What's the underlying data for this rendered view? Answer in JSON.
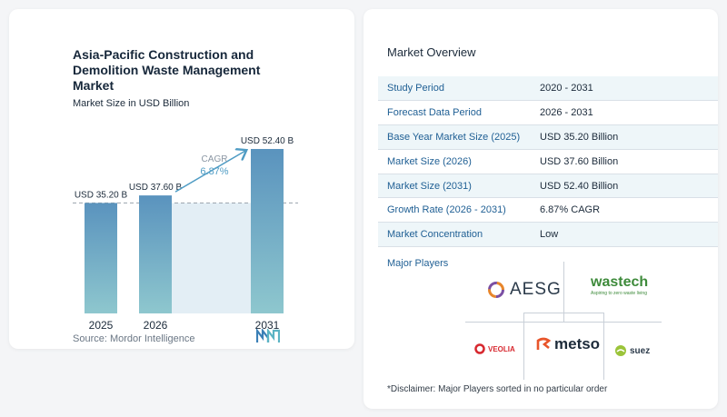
{
  "chart_card": {
    "title": "Asia-Pacific Construction and Demolition Waste Management Market",
    "subtitle": "Market Size in USD Billion",
    "source": "Source: Mordor Intelligence"
  },
  "chart_data": {
    "type": "bar",
    "categories": [
      "2025",
      "2026",
      "2031"
    ],
    "values": [
      35.2,
      37.6,
      52.4
    ],
    "value_labels": [
      "USD 35.20 B",
      "USD 37.60 B",
      "USD 52.40 B"
    ],
    "cagr_label": "CAGR",
    "cagr_value": "6.87%",
    "ylim": [
      0,
      55
    ],
    "colors": {
      "bar_top": "#5a93be",
      "bar_bottom": "#8ec7ce",
      "shade": "#e3eef5",
      "arrow": "#4f9cc4",
      "reference_line": "#9aa3ad"
    }
  },
  "overview": {
    "title": "Market Overview",
    "rows": [
      {
        "label": "Study Period",
        "value": "2020 - 2031"
      },
      {
        "label": "Forecast Data Period",
        "value": "2026 - 2031"
      },
      {
        "label": "Base Year Market Size (2025)",
        "value": "USD 35.20 Billion"
      },
      {
        "label": "Market Size (2026)",
        "value": "USD 37.60 Billion"
      },
      {
        "label": "Market Size (2031)",
        "value": "USD 52.40 Billion"
      },
      {
        "label": "Growth Rate (2026 - 2031)",
        "value": "6.87% CAGR"
      },
      {
        "label": "Market Concentration",
        "value": "Low"
      }
    ],
    "players_label": "Major Players",
    "players": {
      "aesg": "AESG",
      "wastech": "wastech",
      "wastech_tagline": "Aspiring to zero waste living",
      "veolia": "VEOLIA",
      "metso": "metso",
      "suez": "suez"
    },
    "disclaimer": "*Disclaimer: Major Players sorted in no particular order"
  }
}
